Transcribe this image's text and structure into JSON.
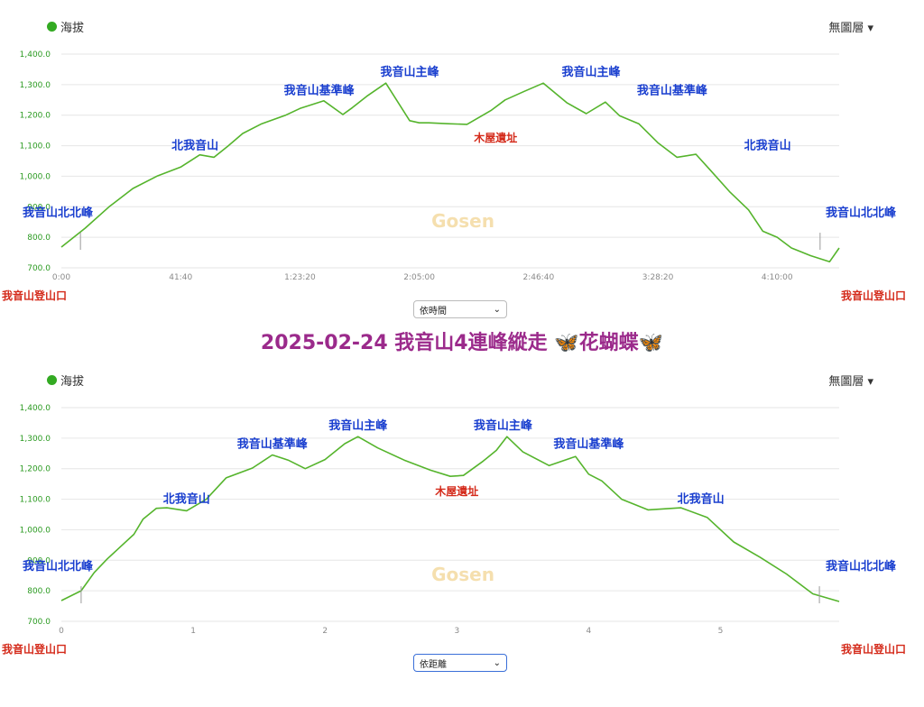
{
  "caption": "2025-02-24 我音山4連峰縱走 🦋花蝴蝶🦋",
  "watermark": "Gosen",
  "colors": {
    "line": "#55b42c",
    "peak": "#1a3fcf",
    "hut": "#d42a1a",
    "caption": "#9b2a8b",
    "legend_dot": "#33aa22"
  },
  "trailhead_label": "我音山登山口",
  "chart_data": [
    {
      "type": "line",
      "legend": "海拔",
      "layer_menu": "無圖層 ▾",
      "select_value": "依時間",
      "y_ticks": [
        "700.0",
        "800.0",
        "900.0",
        "1,000.0",
        "1,100.0",
        "1,200.0",
        "1,300.0",
        "1,400.0"
      ],
      "ylim": [
        700,
        1400
      ],
      "x_ticks": [
        "0:00",
        "41:40",
        "1:23:20",
        "2:05:00",
        "2:46:40",
        "3:28:20",
        "4:10:00"
      ],
      "x_tick_values": [
        0,
        2500,
        5000,
        7500,
        10000,
        12500,
        15000
      ],
      "xlim": [
        0,
        16300
      ],
      "x_unit": "seconds",
      "series": [
        {
          "x": [
            0,
            500,
            1000,
            1500,
            2000,
            2500,
            2900,
            3200,
            3500,
            3800,
            4200,
            4700,
            5000,
            5500,
            5900,
            6100,
            6400,
            6800,
            7300,
            7500,
            7700,
            8100,
            8500,
            9000,
            9300,
            9700,
            10100,
            10600,
            11000,
            11400,
            11700,
            12100,
            12500,
            12900,
            13300,
            13600,
            14000,
            14400,
            14700,
            15000,
            15300,
            15700,
            16100,
            16300
          ],
          "y": [
            768,
            830,
            900,
            960,
            1000,
            1030,
            1070,
            1062,
            1100,
            1140,
            1172,
            1200,
            1222,
            1247,
            1202,
            1225,
            1262,
            1305,
            1182,
            1175,
            1175,
            1172,
            1170,
            1215,
            1250,
            1278,
            1305,
            1240,
            1205,
            1243,
            1198,
            1172,
            1110,
            1062,
            1072,
            1020,
            950,
            890,
            820,
            800,
            765,
            740,
            720,
            765
          ]
        }
      ],
      "annotations": [
        {
          "text": "我音山北北峰",
          "kind": "peak",
          "x": 400,
          "y": 815
        },
        {
          "text": "北我音山",
          "kind": "peak",
          "x": 2800,
          "y": 1065
        },
        {
          "text": "我音山基準峰",
          "kind": "peak",
          "x": 5400,
          "y": 1245
        },
        {
          "text": "我音山主峰",
          "kind": "peak",
          "x": 7300,
          "y": 1305
        },
        {
          "text": "木屋遺址",
          "kind": "hut",
          "x": 9100,
          "y": 1172
        },
        {
          "text": "我音山主峰",
          "kind": "peak",
          "x": 11100,
          "y": 1305
        },
        {
          "text": "我音山基準峰",
          "kind": "peak",
          "x": 12800,
          "y": 1245
        },
        {
          "text": "北我音山",
          "kind": "peak",
          "x": 14800,
          "y": 1065
        },
        {
          "text": "我音山北北峰",
          "kind": "peak",
          "x": 15900,
          "y": 815
        }
      ]
    },
    {
      "type": "line",
      "legend": "海拔",
      "layer_menu": "無圖層 ▾",
      "select_value": "依距離",
      "y_ticks": [
        "700.0",
        "800.0",
        "900.0",
        "1,000.0",
        "1,100.0",
        "1,200.0",
        "1,300.0",
        "1,400.0"
      ],
      "ylim": [
        700,
        1400
      ],
      "x_ticks": [
        "0",
        "1",
        "2",
        "3",
        "4",
        "5"
      ],
      "x_tick_values": [
        0,
        1,
        2,
        3,
        4,
        5
      ],
      "xlim": [
        0,
        5.9
      ],
      "x_unit": "km",
      "series": [
        {
          "x": [
            0,
            0.15,
            0.25,
            0.35,
            0.45,
            0.55,
            0.62,
            0.72,
            0.8,
            0.95,
            1.1,
            1.25,
            1.45,
            1.6,
            1.72,
            1.85,
            2.0,
            2.15,
            2.25,
            2.4,
            2.6,
            2.8,
            2.95,
            3.05,
            3.2,
            3.3,
            3.38,
            3.5,
            3.7,
            3.9,
            4.0,
            4.1,
            4.25,
            4.45,
            4.7,
            4.9,
            5.1,
            5.3,
            5.5,
            5.7,
            5.9
          ],
          "y": [
            768,
            800,
            860,
            905,
            945,
            985,
            1035,
            1070,
            1072,
            1062,
            1100,
            1170,
            1202,
            1245,
            1228,
            1200,
            1230,
            1282,
            1305,
            1268,
            1228,
            1195,
            1175,
            1178,
            1225,
            1260,
            1305,
            1255,
            1210,
            1240,
            1182,
            1160,
            1100,
            1065,
            1072,
            1040,
            960,
            910,
            855,
            790,
            765
          ]
        }
      ],
      "annotations": [
        {
          "text": "我音山北北峰",
          "kind": "peak",
          "x": 0.15,
          "y": 815
        },
        {
          "text": "北我音山",
          "kind": "peak",
          "x": 0.95,
          "y": 1065
        },
        {
          "text": "我音山基準峰",
          "kind": "peak",
          "x": 1.6,
          "y": 1245
        },
        {
          "text": "我音山主峰",
          "kind": "peak",
          "x": 2.25,
          "y": 1305
        },
        {
          "text": "木屋遺址",
          "kind": "hut",
          "x": 3.0,
          "y": 1172
        },
        {
          "text": "我音山主峰",
          "kind": "peak",
          "x": 3.35,
          "y": 1305
        },
        {
          "text": "我音山基準峰",
          "kind": "peak",
          "x": 4.0,
          "y": 1245
        },
        {
          "text": "北我音山",
          "kind": "peak",
          "x": 4.85,
          "y": 1065
        },
        {
          "text": "我音山北北峰",
          "kind": "peak",
          "x": 5.75,
          "y": 815
        }
      ]
    }
  ]
}
